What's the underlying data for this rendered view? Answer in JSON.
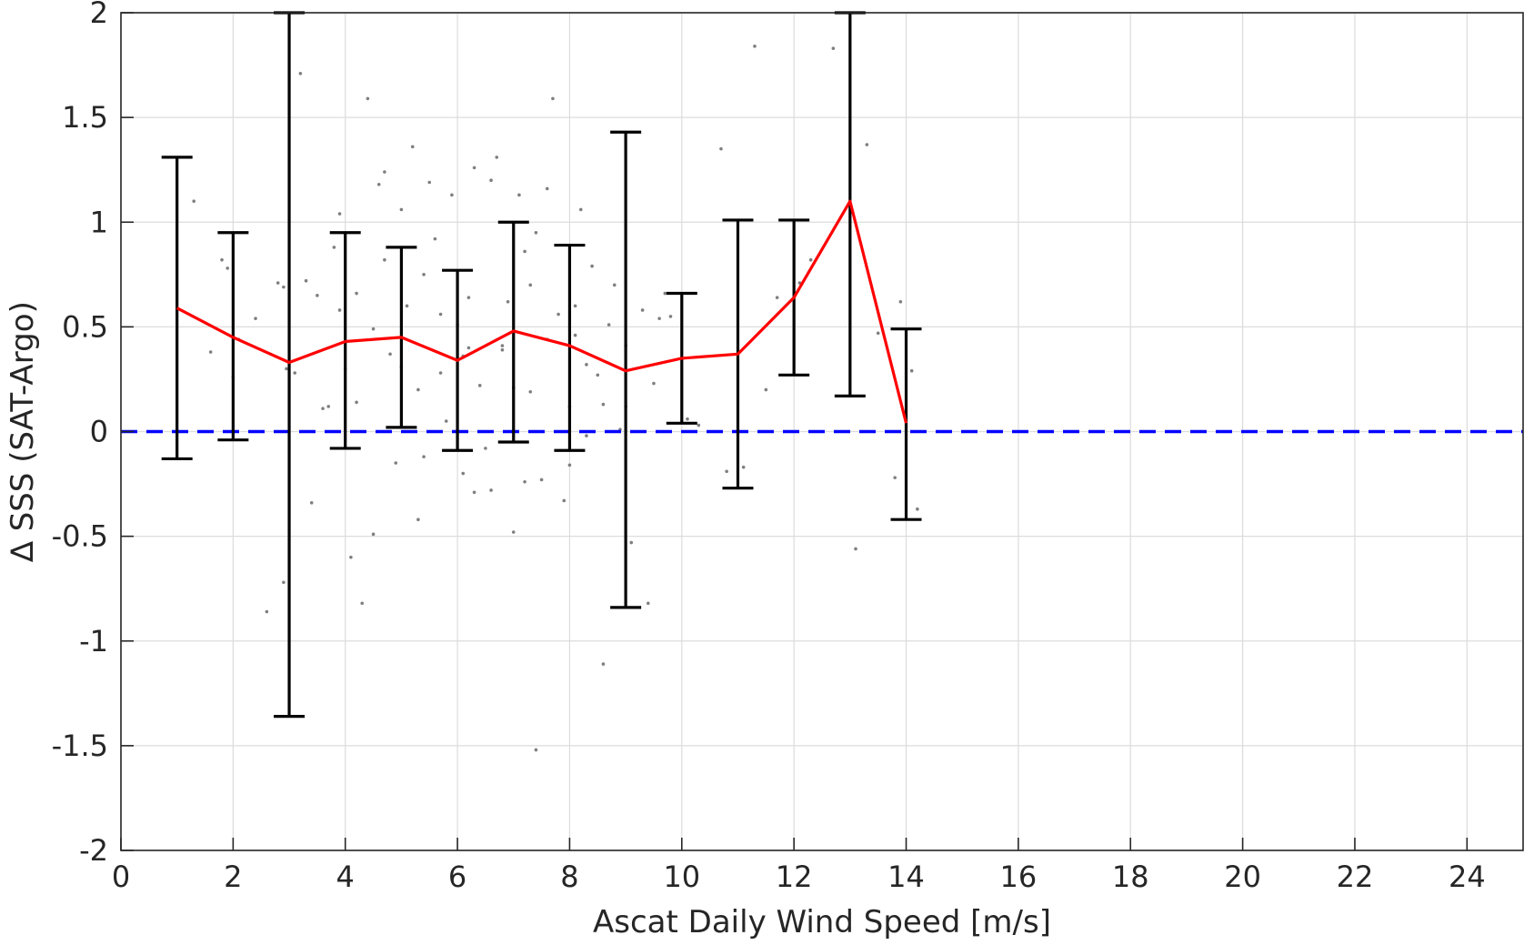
{
  "chart_data": {
    "type": "line",
    "xlabel": "Ascat Daily Wind Speed [m/s]",
    "ylabel": "∆ SSS (SAT-Argo)",
    "xlim": [
      0,
      25
    ],
    "ylim": [
      -2,
      2
    ],
    "x_ticks": [
      0,
      2,
      4,
      6,
      8,
      10,
      12,
      14,
      16,
      18,
      20,
      22,
      24
    ],
    "y_ticks": [
      2,
      1.5,
      1,
      0.5,
      0,
      -0.5,
      -1,
      -1.5,
      -2
    ],
    "grid": true,
    "colors": {
      "mean_line": "#ff0000",
      "zero_line": "#0000ff",
      "error_bars": "#000000",
      "scatter": "#7f7f7f",
      "grid": "#dcdcdc"
    },
    "mean_series": {
      "x": [
        1,
        2,
        3,
        4,
        5,
        6,
        7,
        8,
        9,
        10,
        11,
        12,
        13,
        14
      ],
      "y": [
        0.59,
        0.45,
        0.33,
        0.43,
        0.45,
        0.34,
        0.48,
        0.41,
        0.29,
        0.35,
        0.37,
        0.64,
        1.1,
        0.04
      ]
    },
    "error_bars": [
      {
        "x": 1,
        "low": -0.13,
        "high": 1.31
      },
      {
        "x": 2,
        "low": -0.04,
        "high": 0.95
      },
      {
        "x": 3,
        "low": -1.36,
        "high": 2.0
      },
      {
        "x": 4,
        "low": -0.08,
        "high": 0.95
      },
      {
        "x": 5,
        "low": 0.02,
        "high": 0.88
      },
      {
        "x": 6,
        "low": -0.09,
        "high": 0.77
      },
      {
        "x": 7,
        "low": -0.05,
        "high": 1.0
      },
      {
        "x": 8,
        "low": -0.09,
        "high": 0.89
      },
      {
        "x": 9,
        "low": -0.84,
        "high": 1.43
      },
      {
        "x": 10,
        "low": 0.04,
        "high": 0.66
      },
      {
        "x": 11,
        "low": -0.27,
        "high": 1.01
      },
      {
        "x": 12,
        "low": 0.27,
        "high": 1.01
      },
      {
        "x": 13,
        "low": 0.17,
        "high": 2.0
      },
      {
        "x": 14,
        "low": -0.42,
        "high": 0.49
      }
    ],
    "zero_line": 0,
    "scatter": [
      [
        1.3,
        1.1
      ],
      [
        1.6,
        0.38
      ],
      [
        1.8,
        0.82
      ],
      [
        1.9,
        0.78
      ],
      [
        2.0,
        0.26
      ],
      [
        2.1,
        0.44
      ],
      [
        2.4,
        0.54
      ],
      [
        2.6,
        -0.86
      ],
      [
        2.8,
        0.71
      ],
      [
        2.9,
        0.69
      ],
      [
        2.95,
        0.3
      ],
      [
        3.1,
        0.28
      ],
      [
        3.2,
        1.71
      ],
      [
        3.3,
        0.72
      ],
      [
        3.5,
        0.65
      ],
      [
        3.7,
        0.12
      ],
      [
        3.8,
        0.88
      ],
      [
        3.9,
        1.04
      ],
      [
        4.1,
        -0.6
      ],
      [
        4.2,
        0.66
      ],
      [
        4.3,
        -0.82
      ],
      [
        4.4,
        1.59
      ],
      [
        4.5,
        0.49
      ],
      [
        4.6,
        1.18
      ],
      [
        4.7,
        1.24
      ],
      [
        4.8,
        0.37
      ],
      [
        4.9,
        -0.15
      ],
      [
        5.0,
        1.06
      ],
      [
        5.1,
        0.6
      ],
      [
        5.2,
        1.36
      ],
      [
        5.3,
        0.2
      ],
      [
        5.4,
        -0.12
      ],
      [
        5.5,
        1.19
      ],
      [
        5.6,
        0.92
      ],
      [
        5.7,
        0.56
      ],
      [
        5.8,
        0.05
      ],
      [
        5.9,
        1.13
      ],
      [
        6.0,
        0.51
      ],
      [
        6.1,
        -0.2
      ],
      [
        6.2,
        0.4
      ],
      [
        6.3,
        1.26
      ],
      [
        6.4,
        0.22
      ],
      [
        6.5,
        -0.08
      ],
      [
        6.6,
        1.2
      ],
      [
        6.7,
        1.31
      ],
      [
        6.8,
        0.41
      ],
      [
        6.9,
        0.62
      ],
      [
        7.0,
        -0.48
      ],
      [
        7.1,
        1.13
      ],
      [
        7.2,
        0.86
      ],
      [
        7.3,
        0.19
      ],
      [
        7.4,
        0.95
      ],
      [
        7.5,
        -0.23
      ],
      [
        7.6,
        1.16
      ],
      [
        7.7,
        1.59
      ],
      [
        7.8,
        0.56
      ],
      [
        7.9,
        -0.33
      ],
      [
        8.0,
        0.12
      ],
      [
        8.1,
        0.46
      ],
      [
        8.2,
        1.06
      ],
      [
        8.3,
        -0.02
      ],
      [
        8.4,
        0.79
      ],
      [
        8.5,
        0.27
      ],
      [
        8.6,
        0.13
      ],
      [
        8.7,
        0.51
      ],
      [
        8.8,
        0.7
      ],
      [
        8.9,
        0.01
      ],
      [
        9.0,
        0.41
      ],
      [
        9.1,
        -0.53
      ],
      [
        9.3,
        0.58
      ],
      [
        9.4,
        -0.82
      ],
      [
        9.5,
        0.23
      ],
      [
        9.6,
        0.54
      ],
      [
        9.8,
        0.55
      ],
      [
        10.1,
        0.06
      ],
      [
        10.3,
        0.03
      ],
      [
        10.7,
        1.35
      ],
      [
        10.8,
        -0.19
      ],
      [
        11.1,
        -0.17
      ],
      [
        11.3,
        1.84
      ],
      [
        11.5,
        0.2
      ],
      [
        11.7,
        0.64
      ],
      [
        12.1,
        0.71
      ],
      [
        12.3,
        0.82
      ],
      [
        12.7,
        1.83
      ],
      [
        13.1,
        -0.56
      ],
      [
        13.3,
        1.37
      ],
      [
        13.5,
        0.47
      ],
      [
        13.8,
        -0.22
      ],
      [
        13.9,
        0.62
      ],
      [
        14.1,
        0.29
      ],
      [
        14.2,
        -0.37
      ],
      [
        3.4,
        -0.34
      ],
      [
        4.0,
        0.3
      ],
      [
        4.5,
        -0.49
      ],
      [
        5.3,
        -0.42
      ],
      [
        6.3,
        -0.29
      ],
      [
        6.6,
        -0.28
      ],
      [
        7.2,
        -0.24
      ],
      [
        8.0,
        -0.16
      ],
      [
        8.6,
        -1.11
      ],
      [
        7.4,
        -1.52
      ],
      [
        2.9,
        -0.72
      ],
      [
        3.6,
        0.11
      ],
      [
        4.2,
        0.14
      ],
      [
        5.0,
        0.31
      ],
      [
        5.7,
        0.28
      ],
      [
        6.1,
        0.36
      ],
      [
        6.8,
        0.39
      ],
      [
        7.0,
        0.21
      ],
      [
        7.6,
        0.44
      ],
      [
        8.3,
        0.32
      ],
      [
        9.0,
        0.12
      ],
      [
        9.7,
        0.66
      ],
      [
        6.2,
        0.64
      ],
      [
        5.4,
        0.75
      ],
      [
        4.7,
        0.82
      ],
      [
        3.9,
        0.58
      ],
      [
        7.3,
        0.7
      ],
      [
        8.1,
        0.6
      ]
    ]
  }
}
